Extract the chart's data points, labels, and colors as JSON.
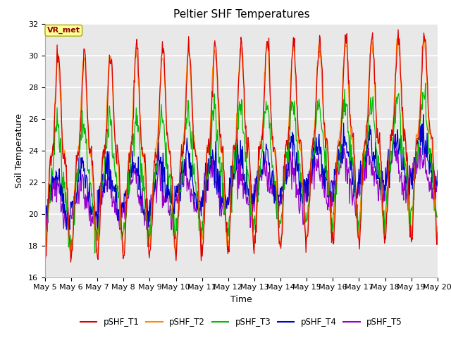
{
  "title": "Peltier SHF Temperatures",
  "xlabel": "Time",
  "ylabel": "Soil Temperature",
  "ylim": [
    16,
    32
  ],
  "x_tick_labels": [
    "May 5",
    "May 6",
    "May 7",
    "May 8",
    "May 9",
    "May 10",
    "May 11",
    "May 12",
    "May 13",
    "May 14",
    "May 15",
    "May 16",
    "May 17",
    "May 18",
    "May 19",
    "May 20"
  ],
  "legend_labels": [
    "pSHF_T1",
    "pSHF_T2",
    "pSHF_T3",
    "pSHF_T4",
    "pSHF_T5"
  ],
  "colors": [
    "#dd0000",
    "#ff8c00",
    "#00bb00",
    "#0000cc",
    "#9900cc"
  ],
  "annotation_text": "VR_met",
  "annotation_color": "#8b0000",
  "annotation_bg": "#ffff99",
  "background_color": "#e8e8e8",
  "grid_color": "white",
  "title_fontsize": 11,
  "axis_label_fontsize": 9,
  "tick_fontsize": 8,
  "total_days": 15
}
